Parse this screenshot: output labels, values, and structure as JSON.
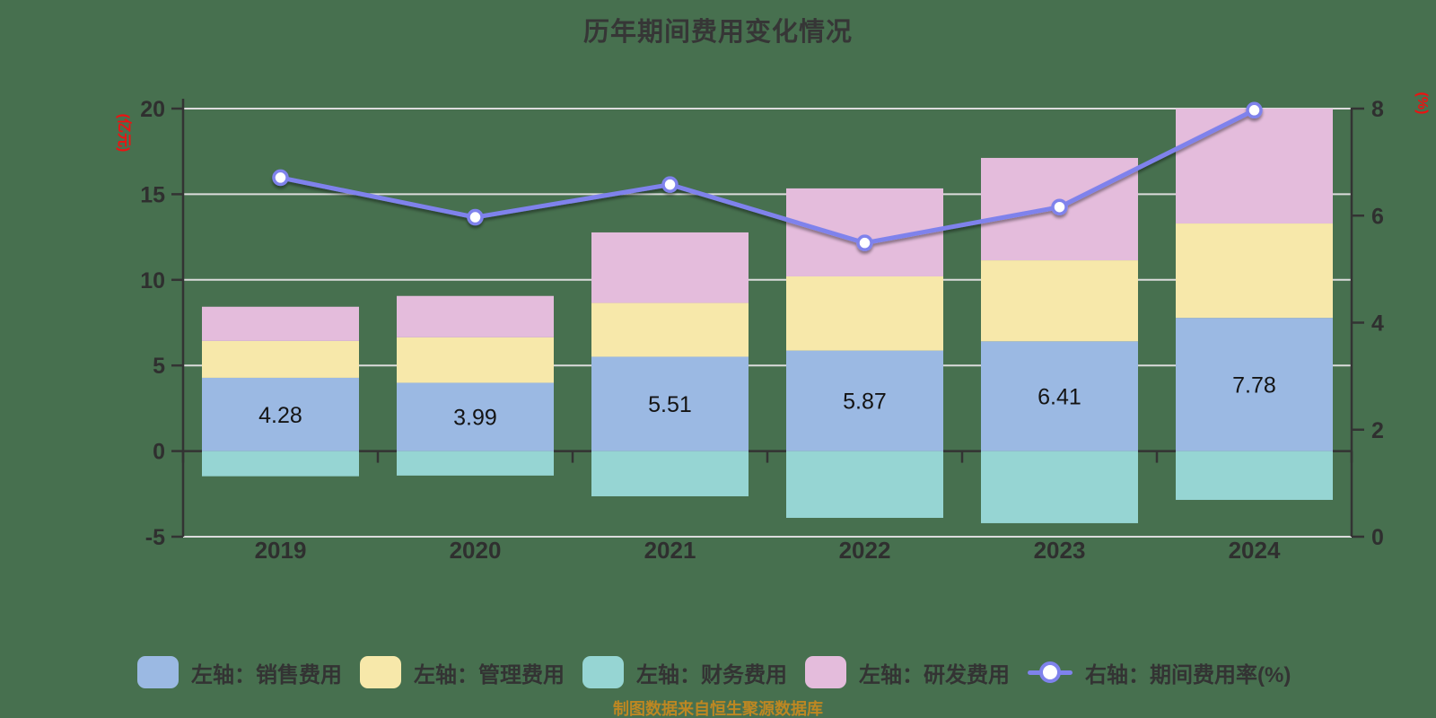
{
  "page": {
    "title": "历年期间费用变化情况",
    "source_note": "制图数据来自恒生聚源数据库",
    "background_color": "#47704f"
  },
  "chart_data": {
    "type": "bar",
    "subtype": "stacked-bar-with-secondary-line",
    "title": "历年期间费用变化情况",
    "categories": [
      "2019",
      "2020",
      "2021",
      "2022",
      "2023",
      "2024"
    ],
    "left_axis": {
      "name": "(亿元)",
      "min": -5,
      "max": 20,
      "ticks": [
        20,
        15,
        10,
        5,
        0,
        -5
      ],
      "name_color": "#ee1111"
    },
    "right_axis": {
      "name": "(%)",
      "min": 0,
      "max": 8,
      "ticks": [
        8,
        6,
        4,
        2,
        0
      ],
      "name_color": "#ee1111"
    },
    "series": [
      {
        "key": "sales",
        "name": "左轴：销售费用",
        "type": "bar",
        "stack": "positive",
        "axis": "left",
        "color": "#9bb9e3",
        "values": [
          4.28,
          3.99,
          5.51,
          5.87,
          6.41,
          7.78
        ],
        "show_labels": true
      },
      {
        "key": "management",
        "name": "左轴：管理费用",
        "type": "bar",
        "stack": "positive",
        "axis": "left",
        "color": "#f7e8aa",
        "values": [
          2.15,
          2.65,
          3.14,
          4.33,
          4.73,
          5.51
        ],
        "show_labels": false
      },
      {
        "key": "finance",
        "name": "左轴：财务费用",
        "type": "bar",
        "stack": "negative",
        "axis": "left",
        "color": "#96d5d3",
        "values": [
          -1.47,
          -1.43,
          -2.64,
          -3.9,
          -4.21,
          -2.85
        ],
        "show_labels": false
      },
      {
        "key": "rnd",
        "name": "左轴：研发费用",
        "type": "bar",
        "stack": "positive",
        "axis": "left",
        "color": "#e4bcdc",
        "values": [
          2.0,
          2.42,
          4.12,
          5.14,
          5.98,
          6.71
        ],
        "show_labels": false
      },
      {
        "key": "rate",
        "name": "右轴：期间费用率(%)",
        "type": "line",
        "axis": "right",
        "color": "#7f82ec",
        "marker": "circle-white",
        "values": [
          6.71,
          5.97,
          6.58,
          5.49,
          6.16,
          7.97
        ],
        "show_labels": false
      }
    ],
    "stack_render_order": [
      "sales",
      "management",
      "rnd"
    ],
    "grid": true,
    "grid_color": "#dcdcdc",
    "axis_color": "#333333",
    "value_label_color": "#141414",
    "legend_position": "bottom"
  }
}
